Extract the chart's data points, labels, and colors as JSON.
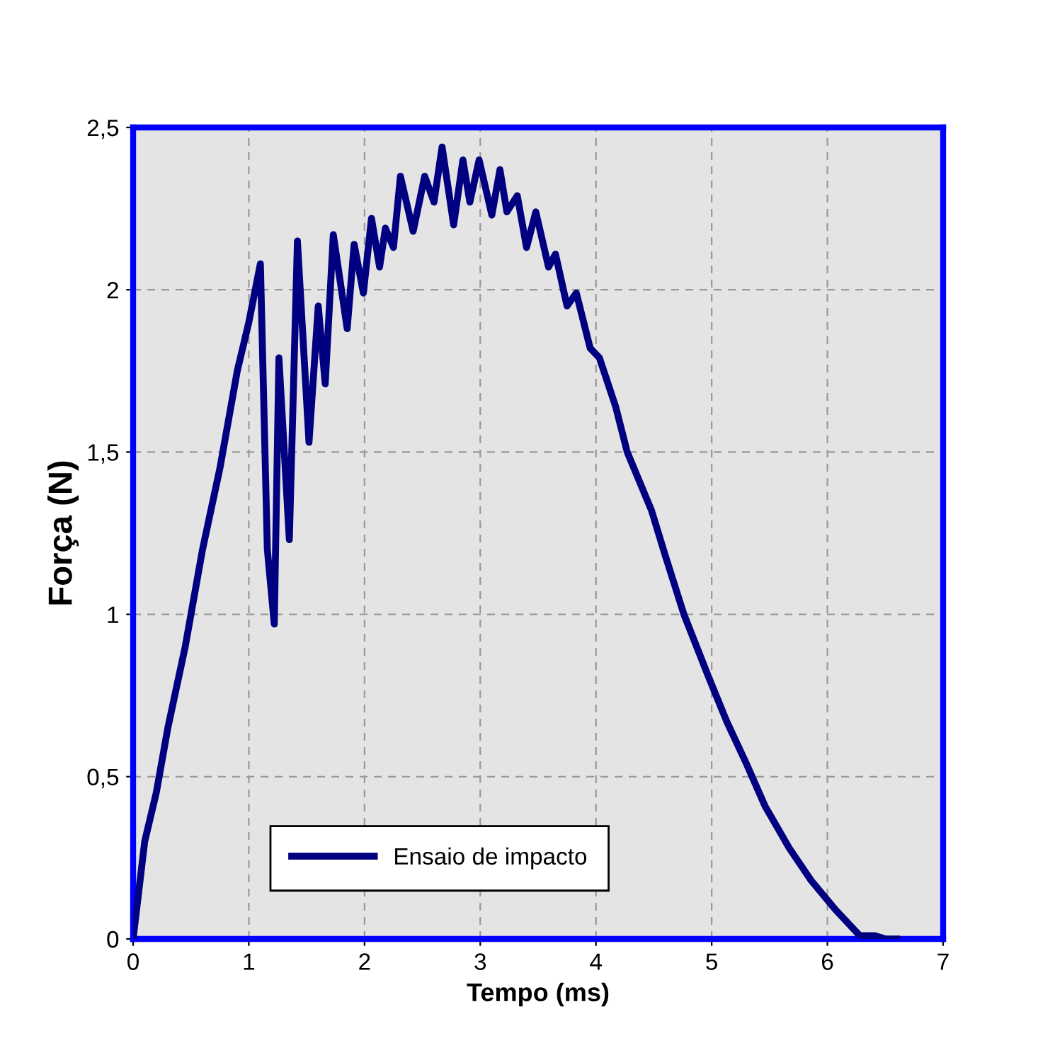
{
  "chart_data": {
    "type": "line",
    "xlabel": "Tempo (ms)",
    "ylabel": "Força (N)",
    "xlim": [
      0,
      7
    ],
    "ylim": [
      0,
      2.5
    ],
    "xticks": [
      0,
      1,
      2,
      3,
      4,
      5,
      6,
      7
    ],
    "yticks": [
      0,
      {
        "value": 0.5,
        "label": "0,5"
      },
      1,
      {
        "value": 1.5,
        "label": "1,5"
      },
      2,
      {
        "value": 2.5,
        "label": "2,5"
      }
    ],
    "grid": true,
    "legend": "bottom left",
    "marker": "none",
    "line_style": "solid",
    "series": [
      {
        "name": "Ensaio de impacto",
        "color": "#000080",
        "x": [
          0,
          0.05,
          0.1,
          0.2,
          0.3,
          0.45,
          0.6,
          0.75,
          0.9,
          1.0,
          1.1,
          1.16,
          1.22,
          1.26,
          1.35,
          1.42,
          1.52,
          1.6,
          1.66,
          1.73,
          1.85,
          1.91,
          1.99,
          2.06,
          2.13,
          2.18,
          2.25,
          2.31,
          2.42,
          2.52,
          2.6,
          2.67,
          2.77,
          2.85,
          2.91,
          2.99,
          3.1,
          3.17,
          3.23,
          3.32,
          3.4,
          3.48,
          3.59,
          3.65,
          3.75,
          3.83,
          3.95,
          4.03,
          4.17,
          4.27,
          4.48,
          4.6,
          4.76,
          4.97,
          5.13,
          5.3,
          5.46,
          5.67,
          5.86,
          6.07,
          6.28,
          6.41,
          6.5,
          6.6
        ],
        "values": [
          0,
          0.15,
          0.3,
          0.45,
          0.65,
          0.9,
          1.2,
          1.45,
          1.75,
          1.9,
          2.08,
          1.2,
          0.97,
          1.79,
          1.23,
          2.15,
          1.53,
          1.95,
          1.71,
          2.17,
          1.88,
          2.14,
          1.99,
          2.22,
          2.07,
          2.19,
          2.13,
          2.35,
          2.18,
          2.35,
          2.27,
          2.44,
          2.2,
          2.4,
          2.27,
          2.4,
          2.23,
          2.37,
          2.24,
          2.29,
          2.13,
          2.24,
          2.07,
          2.11,
          1.95,
          1.99,
          1.82,
          1.79,
          1.64,
          1.5,
          1.32,
          1.18,
          1.0,
          0.81,
          0.67,
          0.54,
          0.41,
          0.28,
          0.18,
          0.09,
          0.01,
          0.01,
          0,
          0
        ]
      }
    ]
  }
}
